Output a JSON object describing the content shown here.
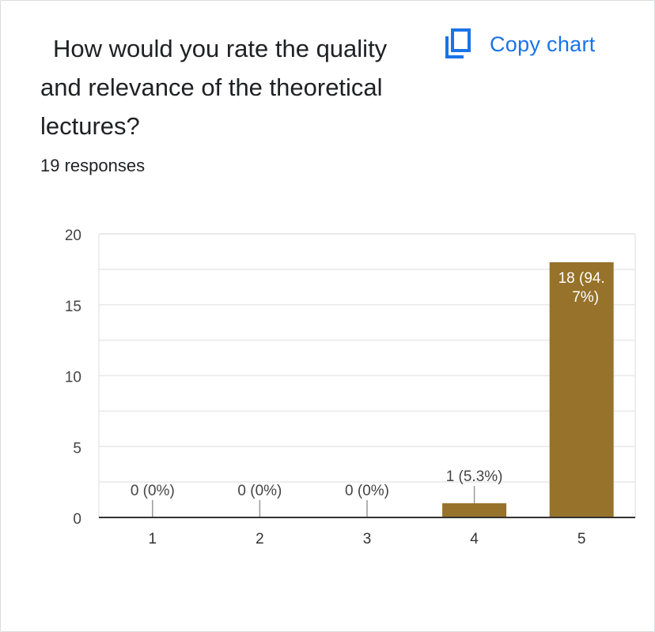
{
  "question": "How would you rate the quality and relevance of the theoretical lectures?",
  "responses_text": "19 responses",
  "copy_chart_label": "Copy chart",
  "icons": {
    "copy": "copy-icon"
  },
  "colors": {
    "bar": "#96722a",
    "accent": "#1a73e8",
    "grid": "#e8e8e8",
    "axis": "#333333"
  },
  "chart_data": {
    "type": "bar",
    "categories": [
      "1",
      "2",
      "3",
      "4",
      "5"
    ],
    "values": [
      0,
      0,
      0,
      1,
      18
    ],
    "data_labels": [
      "0 (0%)",
      "0 (0%)",
      "0 (0%)",
      "1 (5.3%)",
      "18 (94.7%)"
    ],
    "y_ticks": [
      "0",
      "5",
      "10",
      "15",
      "20"
    ],
    "ylim": [
      0,
      20
    ],
    "grid": true,
    "title": "",
    "xlabel": "",
    "ylabel": ""
  }
}
